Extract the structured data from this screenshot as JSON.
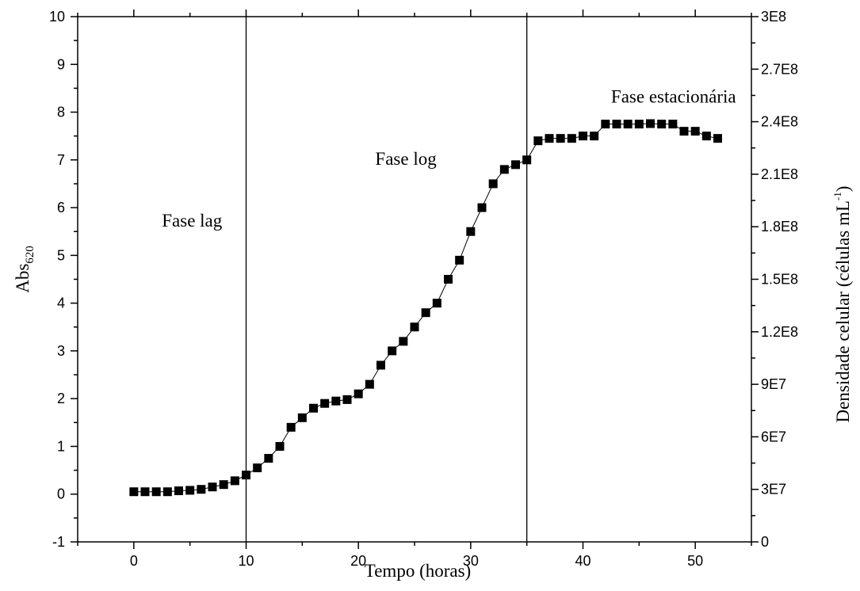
{
  "chart_data": {
    "type": "scatter",
    "xlabel": "Tempo (horas)",
    "ylabel": {
      "base": "Abs",
      "sub": "620"
    },
    "y2label": {
      "text": "Densidade celular (células mL",
      "sup": "-1",
      "close": ")"
    },
    "xlim": [
      -5,
      55
    ],
    "ylim": [
      -1,
      10
    ],
    "y2lim": [
      0,
      300000000
    ],
    "xticks": [
      0,
      10,
      20,
      30,
      40,
      50
    ],
    "yticks": [
      -1,
      0,
      1,
      2,
      3,
      4,
      5,
      6,
      7,
      8,
      9,
      10
    ],
    "y2ticks": [
      {
        "value": 0,
        "label": "0"
      },
      {
        "value": 30000000,
        "label": "3E7"
      },
      {
        "value": 60000000,
        "label": "6E7"
      },
      {
        "value": 90000000,
        "label": "9E7"
      },
      {
        "value": 120000000,
        "label": "1.2E8"
      },
      {
        "value": 150000000,
        "label": "1.5E8"
      },
      {
        "value": 180000000,
        "label": "1.8E8"
      },
      {
        "value": 210000000,
        "label": "2.1E8"
      },
      {
        "value": 240000000,
        "label": "2.4E8"
      },
      {
        "value": 270000000,
        "label": "2.7E8"
      },
      {
        "value": 300000000,
        "label": "3E8"
      }
    ],
    "vlines": [
      10,
      35
    ],
    "annotations": [
      {
        "text": "Fase lag",
        "x": 2.5,
        "y": 5.6
      },
      {
        "text": "Fase log",
        "x": 21.5,
        "y": 6.9
      },
      {
        "text": "Fase estacionária",
        "x": 42.5,
        "y": 8.2
      }
    ],
    "series": [
      {
        "marker": "square",
        "line": true,
        "color": "#000000",
        "x": [
          0,
          1,
          2,
          3,
          4,
          5,
          6,
          7,
          8,
          9,
          10,
          11,
          12,
          13,
          14,
          15,
          16,
          17,
          18,
          19,
          20,
          21,
          22,
          23,
          24,
          25,
          26,
          27,
          28,
          29,
          30,
          31,
          32,
          33,
          34,
          35,
          36,
          37,
          38,
          39,
          40,
          41,
          42,
          43,
          44,
          45,
          46,
          47,
          48,
          49,
          50,
          51,
          52
        ],
        "y": [
          0.05,
          0.05,
          0.05,
          0.05,
          0.07,
          0.08,
          0.1,
          0.15,
          0.2,
          0.28,
          0.4,
          0.55,
          0.75,
          1.0,
          1.4,
          1.6,
          1.8,
          1.9,
          1.95,
          1.98,
          2.1,
          2.3,
          2.7,
          3.0,
          3.2,
          3.5,
          3.8,
          4.0,
          4.5,
          4.9,
          5.5,
          6.0,
          6.5,
          6.8,
          6.9,
          7.0,
          7.4,
          7.45,
          7.45,
          7.45,
          7.5,
          7.5,
          7.75,
          7.75,
          7.75,
          7.75,
          7.76,
          7.75,
          7.75,
          7.6,
          7.6,
          7.5,
          7.45
        ]
      }
    ]
  }
}
